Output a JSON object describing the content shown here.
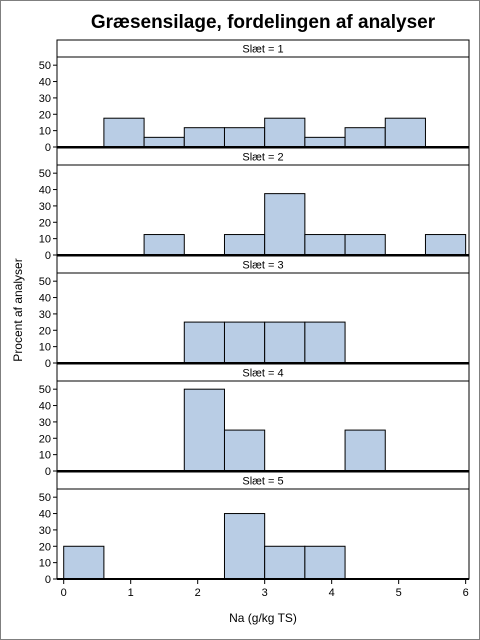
{
  "chart_data": {
    "type": "bar",
    "title": "Græsensilage, fordelingen af analyser",
    "xlabel": "Na (g/kg TS)",
    "ylabel": "Procent af analyser",
    "xlim": [
      -0.1,
      6.05
    ],
    "ylim": [
      0,
      55
    ],
    "x_ticks": [
      "0",
      "1",
      "2",
      "3",
      "4",
      "5",
      "6"
    ],
    "y_ticks": [
      "0",
      "10",
      "20",
      "30",
      "40",
      "50"
    ],
    "bin_width": 0.6,
    "bar_color": "#b9cde5",
    "grid": false,
    "panels": [
      {
        "label": "Slæt = 1",
        "bins": [
          {
            "start": 0.6,
            "value": 17.6
          },
          {
            "start": 1.2,
            "value": 5.9
          },
          {
            "start": 1.8,
            "value": 11.8
          },
          {
            "start": 2.4,
            "value": 11.8
          },
          {
            "start": 3.0,
            "value": 17.6
          },
          {
            "start": 3.6,
            "value": 5.9
          },
          {
            "start": 4.2,
            "value": 11.8
          },
          {
            "start": 4.8,
            "value": 17.6
          }
        ]
      },
      {
        "label": "Slæt = 2",
        "bins": [
          {
            "start": 1.2,
            "value": 12.5
          },
          {
            "start": 2.4,
            "value": 12.5
          },
          {
            "start": 3.0,
            "value": 37.5
          },
          {
            "start": 3.6,
            "value": 12.5
          },
          {
            "start": 4.2,
            "value": 12.5
          },
          {
            "start": 5.4,
            "value": 12.5
          }
        ]
      },
      {
        "label": "Slæt = 3",
        "bins": [
          {
            "start": 1.8,
            "value": 25
          },
          {
            "start": 2.4,
            "value": 25
          },
          {
            "start": 3.0,
            "value": 25
          },
          {
            "start": 3.6,
            "value": 25
          }
        ]
      },
      {
        "label": "Slæt = 4",
        "bins": [
          {
            "start": 1.8,
            "value": 50
          },
          {
            "start": 2.4,
            "value": 25
          },
          {
            "start": 4.2,
            "value": 25
          }
        ]
      },
      {
        "label": "Slæt = 5",
        "bins": [
          {
            "start": 0.0,
            "value": 20
          },
          {
            "start": 2.4,
            "value": 40
          },
          {
            "start": 3.0,
            "value": 20
          },
          {
            "start": 3.6,
            "value": 20
          }
        ]
      }
    ]
  }
}
